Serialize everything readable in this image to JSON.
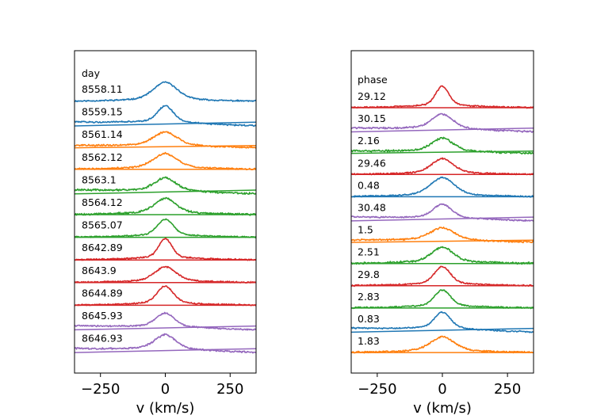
{
  "chart_data": [
    {
      "type": "line",
      "panel": "left",
      "legend_title": "day",
      "xlabel": "v (km/s)",
      "ylabel": "",
      "xlim": [
        -350,
        350
      ],
      "xticks": [
        -250,
        0,
        250
      ],
      "xtick_labels": [
        "−250",
        "0",
        "250"
      ],
      "grid": false,
      "series": [
        {
          "name": "8558.11",
          "color": "#1f77b4",
          "peak": 2.4,
          "width": 45,
          "wing": 1.1,
          "slope": 0.0,
          "noise": 0.1,
          "has_baseline": false
        },
        {
          "name": "8559.15",
          "color": "#1f77b4",
          "peak": 2.4,
          "width": 30,
          "wing": 0.9,
          "slope": 0.35,
          "noise": 0.1,
          "has_baseline": true
        },
        {
          "name": "8561.14",
          "color": "#ff7f0e",
          "peak": 1.8,
          "width": 45,
          "wing": 0.9,
          "slope": 0.2,
          "noise": 0.12,
          "has_baseline": true
        },
        {
          "name": "8562.12",
          "color": "#ff7f0e",
          "peak": 1.9,
          "width": 45,
          "wing": 1.0,
          "slope": 0.0,
          "noise": 0.12,
          "has_baseline": true
        },
        {
          "name": "8563.1",
          "color": "#2ca02c",
          "peak": 1.8,
          "width": 40,
          "wing": 0.8,
          "slope": 0.35,
          "noise": 0.14,
          "has_baseline": true
        },
        {
          "name": "8564.12",
          "color": "#2ca02c",
          "peak": 2.0,
          "width": 40,
          "wing": 1.0,
          "slope": 0.0,
          "noise": 0.14,
          "has_baseline": true
        },
        {
          "name": "8565.07",
          "color": "#2ca02c",
          "peak": 2.4,
          "width": 30,
          "wing": 0.9,
          "slope": 0.0,
          "noise": 0.1,
          "has_baseline": true
        },
        {
          "name": "8642.89",
          "color": "#d62728",
          "peak": 3.0,
          "width": 25,
          "wing": 0.9,
          "slope": 0.0,
          "noise": 0.1,
          "has_baseline": true
        },
        {
          "name": "8643.9",
          "color": "#d62728",
          "peak": 2.0,
          "width": 40,
          "wing": 0.9,
          "slope": 0.0,
          "noise": 0.1,
          "has_baseline": true
        },
        {
          "name": "8644.89",
          "color": "#d62728",
          "peak": 2.6,
          "width": 30,
          "wing": 0.9,
          "slope": 0.0,
          "noise": 0.1,
          "has_baseline": true
        },
        {
          "name": "8645.93",
          "color": "#9467bd",
          "peak": 2.0,
          "width": 35,
          "wing": 0.7,
          "slope": 0.35,
          "noise": 0.1,
          "has_baseline": true
        },
        {
          "name": "8646.93",
          "color": "#9467bd",
          "peak": 2.0,
          "width": 40,
          "wing": 0.9,
          "slope": 0.35,
          "noise": 0.12,
          "has_baseline": true
        }
      ]
    },
    {
      "type": "line",
      "panel": "right",
      "legend_title": "phase",
      "xlabel": "v (km/s)",
      "ylabel": "",
      "xlim": [
        -350,
        350
      ],
      "xticks": [
        -250,
        0,
        250
      ],
      "xtick_labels": [
        "−250",
        "0",
        "250"
      ],
      "grid": false,
      "series": [
        {
          "name": "29.12",
          "color": "#d62728",
          "peak": 3.0,
          "width": 25,
          "wing": 0.9,
          "slope": 0.0,
          "noise": 0.1,
          "has_baseline": true
        },
        {
          "name": "30.15",
          "color": "#9467bd",
          "peak": 2.0,
          "width": 40,
          "wing": 0.9,
          "slope": 0.35,
          "noise": 0.12,
          "has_baseline": true
        },
        {
          "name": "2.16",
          "color": "#2ca02c",
          "peak": 1.8,
          "width": 40,
          "wing": 0.8,
          "slope": 0.2,
          "noise": 0.14,
          "has_baseline": true
        },
        {
          "name": "29.46",
          "color": "#d62728",
          "peak": 2.0,
          "width": 40,
          "wing": 0.9,
          "slope": 0.0,
          "noise": 0.1,
          "has_baseline": true
        },
        {
          "name": "0.48",
          "color": "#1f77b4",
          "peak": 2.4,
          "width": 45,
          "wing": 1.1,
          "slope": 0.0,
          "noise": 0.1,
          "has_baseline": true
        },
        {
          "name": "30.48",
          "color": "#9467bd",
          "peak": 2.0,
          "width": 35,
          "wing": 0.7,
          "slope": 0.35,
          "noise": 0.1,
          "has_baseline": true
        },
        {
          "name": "1.5",
          "color": "#ff7f0e",
          "peak": 1.6,
          "width": 45,
          "wing": 0.9,
          "slope": 0.2,
          "noise": 0.12,
          "has_baseline": true
        },
        {
          "name": "2.51",
          "color": "#2ca02c",
          "peak": 2.0,
          "width": 40,
          "wing": 1.0,
          "slope": 0.0,
          "noise": 0.14,
          "has_baseline": true
        },
        {
          "name": "29.8",
          "color": "#d62728",
          "peak": 2.6,
          "width": 30,
          "wing": 0.9,
          "slope": 0.0,
          "noise": 0.1,
          "has_baseline": true
        },
        {
          "name": "2.83",
          "color": "#2ca02c",
          "peak": 2.4,
          "width": 30,
          "wing": 0.9,
          "slope": 0.0,
          "noise": 0.1,
          "has_baseline": true
        },
        {
          "name": "0.83",
          "color": "#1f77b4",
          "peak": 2.4,
          "width": 30,
          "wing": 0.9,
          "slope": 0.35,
          "noise": 0.1,
          "has_baseline": true
        },
        {
          "name": "1.83",
          "color": "#ff7f0e",
          "peak": 1.9,
          "width": 45,
          "wing": 1.0,
          "slope": 0.0,
          "noise": 0.12,
          "has_baseline": true
        }
      ]
    }
  ]
}
